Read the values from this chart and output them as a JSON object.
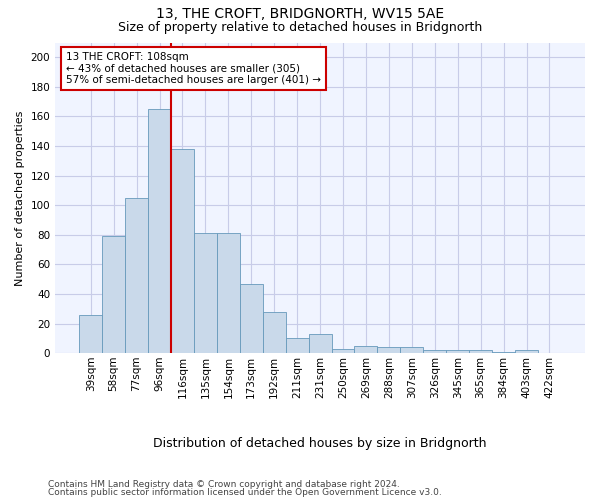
{
  "title1": "13, THE CROFT, BRIDGNORTH, WV15 5AE",
  "title2": "Size of property relative to detached houses in Bridgnorth",
  "xlabel": "Distribution of detached houses by size in Bridgnorth",
  "ylabel": "Number of detached properties",
  "categories": [
    "39sqm",
    "58sqm",
    "77sqm",
    "96sqm",
    "116sqm",
    "135sqm",
    "154sqm",
    "173sqm",
    "192sqm",
    "211sqm",
    "231sqm",
    "250sqm",
    "269sqm",
    "288sqm",
    "307sqm",
    "326sqm",
    "345sqm",
    "365sqm",
    "384sqm",
    "403sqm",
    "422sqm"
  ],
  "values": [
    26,
    79,
    105,
    165,
    138,
    81,
    81,
    47,
    28,
    10,
    13,
    3,
    5,
    4,
    4,
    2,
    2,
    2,
    1,
    2,
    0
  ],
  "bar_color": "#c9d9ea",
  "bar_edge_color": "#6699bb",
  "vline_color": "#cc0000",
  "annotation_line1": "13 THE CROFT: 108sqm",
  "annotation_line2": "← 43% of detached houses are smaller (305)",
  "annotation_line3": "57% of semi-detached houses are larger (401) →",
  "annotation_box_color": "white",
  "annotation_box_edge": "#cc0000",
  "ylim": [
    0,
    210
  ],
  "yticks": [
    0,
    20,
    40,
    60,
    80,
    100,
    120,
    140,
    160,
    180,
    200
  ],
  "footer1": "Contains HM Land Registry data © Crown copyright and database right 2024.",
  "footer2": "Contains public sector information licensed under the Open Government Licence v3.0.",
  "bg_color": "#f0f4ff",
  "grid_color": "#c8cce8",
  "title1_fontsize": 10,
  "title2_fontsize": 9,
  "ylabel_fontsize": 8,
  "xlabel_fontsize": 9,
  "tick_fontsize": 7.5,
  "footer_fontsize": 6.5
}
